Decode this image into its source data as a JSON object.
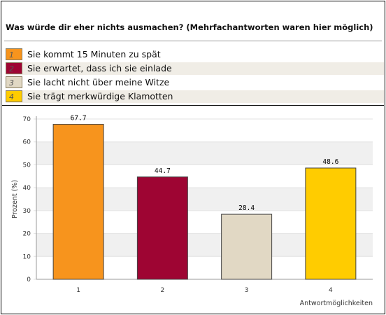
{
  "question": "Was würde dir eher nichts ausmachen? (Mehrfachantworten waren hier möglich)",
  "legend": [
    {
      "num": "1",
      "label": "Sie kommt 15 Minuten zu spät",
      "color": "#F7941D"
    },
    {
      "num": "2",
      "label": "Sie erwartet, dass ich sie einlade",
      "color": "#9E0533"
    },
    {
      "num": "3",
      "label": "Sie lacht nicht über meine Witze",
      "color": "#E1D8C4"
    },
    {
      "num": "4",
      "label": "Sie trägt merkwürdige Klamotten",
      "color": "#FFCC00"
    }
  ],
  "chart_data": {
    "type": "bar",
    "categories": [
      "1",
      "2",
      "3",
      "4"
    ],
    "values": [
      67.7,
      44.7,
      28.4,
      48.6
    ],
    "value_labels": [
      "67.7",
      "44.7",
      "28.4",
      "48.6"
    ],
    "colors": [
      "#F7941D",
      "#9E0533",
      "#E1D8C4",
      "#FFCC00"
    ],
    "ylabel": "Prozent (%)",
    "xlabel": "Antwortmöglichkeiten",
    "ylim": [
      0,
      70
    ],
    "yticks": [
      0,
      10,
      20,
      30,
      40,
      50,
      60,
      70
    ],
    "grid": true,
    "band_color": "#f0f0f0"
  }
}
